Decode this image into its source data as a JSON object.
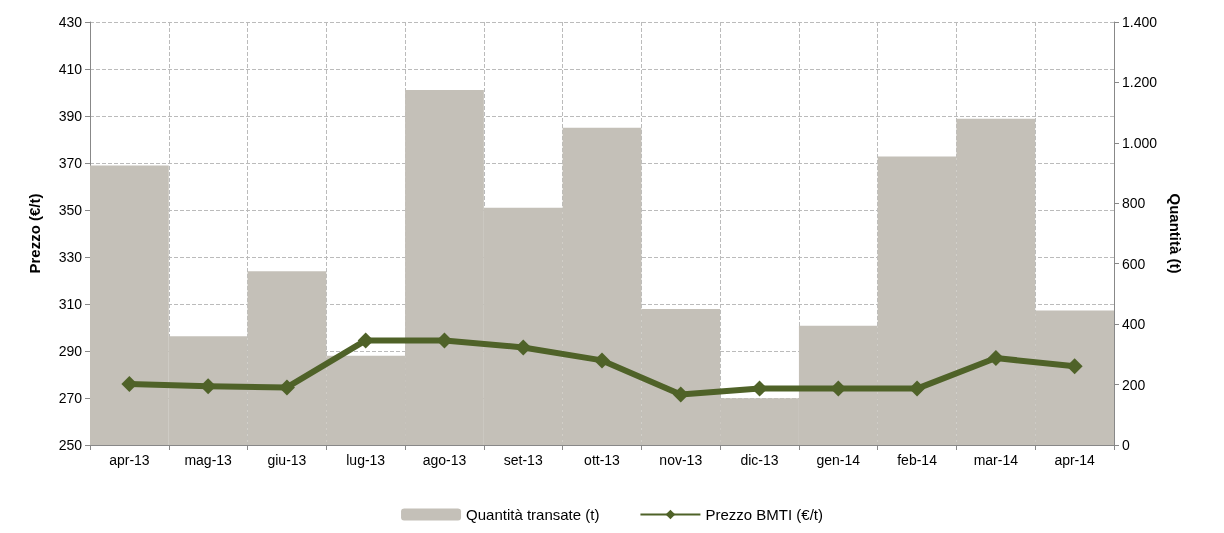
{
  "chart_data": {
    "type": "bar",
    "categories": [
      "apr-13",
      "mag-13",
      "giu-13",
      "lug-13",
      "ago-13",
      "set-13",
      "ott-13",
      "nov-13",
      "dic-13",
      "gen-14",
      "feb-14",
      "mar-14",
      "apr-14"
    ],
    "ylabel": "Prezzo (€/t)",
    "y2label": "Quantità (t)",
    "series": [
      {
        "name": "Quantità transate (t)",
        "axis": "y2",
        "color": "#c4c0b8",
        "values": [
          925,
          360,
          575,
          295,
          1175,
          785,
          1050,
          450,
          155,
          395,
          955,
          1080,
          445
        ]
      },
      {
        "name": "Prezzo BMTI (€/t)",
        "type": "line",
        "color": "#4f6228",
        "marker": "diamond",
        "values": [
          276,
          275,
          274.5,
          294.5,
          294.5,
          291.5,
          286,
          271.5,
          274,
          274,
          274,
          287,
          283.5
        ]
      }
    ],
    "ylim": [
      250,
      430
    ],
    "yticks": [
      250,
      270,
      290,
      310,
      330,
      350,
      370,
      390,
      410,
      430
    ],
    "y2lim": [
      0,
      1400
    ],
    "y2ticks": [
      {
        "value": 0,
        "label": "0"
      },
      {
        "value": 200,
        "label": "200"
      },
      {
        "value": 400,
        "label": "400"
      },
      {
        "value": 600,
        "label": "600"
      },
      {
        "value": 800,
        "label": "800"
      },
      {
        "value": 1000,
        "label": "1.000"
      },
      {
        "value": 1200,
        "label": "1.200"
      },
      {
        "value": 1400,
        "label": "1.400"
      }
    ],
    "grid": true,
    "legend": "bottom"
  }
}
